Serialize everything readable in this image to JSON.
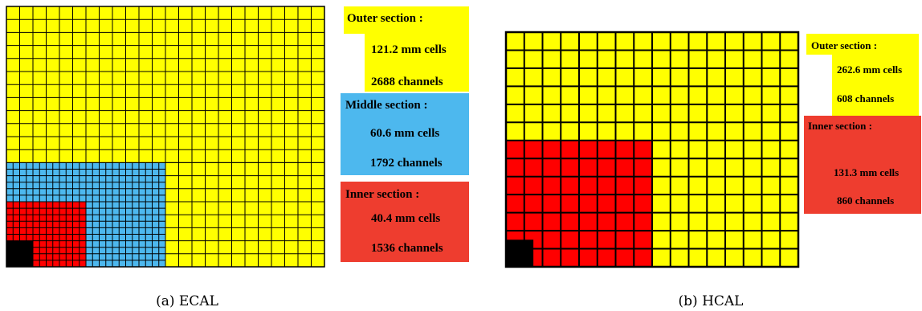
{
  "ecal": {
    "caption": "(a)  ECAL",
    "outer": {
      "title": "Outer  section :",
      "cells": "121.2 mm  cells",
      "channels": "2688  channels",
      "color": "#ffff00"
    },
    "middle": {
      "title": "Middle section :",
      "cells": "60.6 mm  cells",
      "channels": "1792 channels",
      "color": "#4db8ee"
    },
    "inner": {
      "title": "Inner section :",
      "cells": "40.4 mm  cells",
      "channels": "1536  channels",
      "color": "#ee3d2f"
    },
    "grid_colors": {
      "outer": "#ffff00",
      "middle": "#4db8ee",
      "inner": "#ff0000",
      "beam_hole": "#000000"
    }
  },
  "hcal": {
    "caption": "(b)  HCAL",
    "outer": {
      "title": "Outer section :",
      "cells": "262.6 mm  cells",
      "channels": "608  channels",
      "color": "#ffff00"
    },
    "inner": {
      "title": "Inner section :",
      "cells": "131.3 mm  cells",
      "channels": "860  channels",
      "color": "#ee3d2f"
    },
    "grid_colors": {
      "outer": "#ffff00",
      "inner": "#ff0000",
      "beam_hole": "#000000"
    }
  }
}
